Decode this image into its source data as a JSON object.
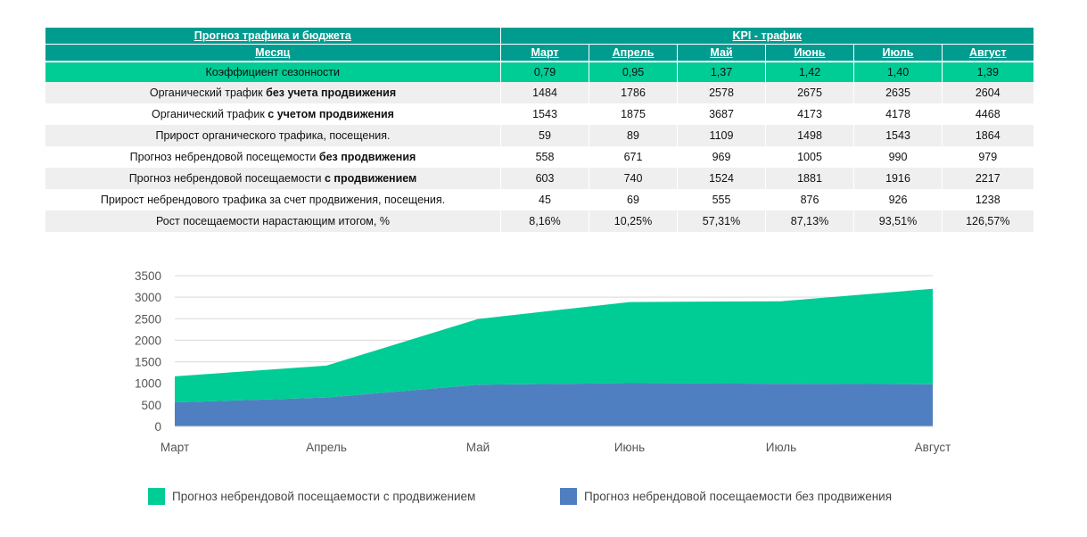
{
  "table": {
    "title_left": "Прогноз трафика и бюджета",
    "title_right": "KPI - трафик",
    "month_header": "Месяц",
    "months": [
      "Март",
      "Апрель",
      "Май",
      "Июнь",
      "Июль",
      "Август"
    ],
    "seasonality": {
      "label": "Коэффициент сезонности",
      "values": [
        "0,79",
        "0,95",
        "1,37",
        "1,42",
        "1,40",
        "1,39"
      ]
    },
    "rows": [
      {
        "label_plain": "Органический трафик ",
        "label_bold": "без учета продвижения",
        "values": [
          "1484",
          "1786",
          "2578",
          "2675",
          "2635",
          "2604"
        ]
      },
      {
        "label_plain": "Органический трафик ",
        "label_bold": "с учетом продвижения",
        "values": [
          "1543",
          "1875",
          "3687",
          "4173",
          "4178",
          "4468"
        ]
      },
      {
        "label_plain": "Прирост органического трафика, посещения.",
        "label_bold": "",
        "values": [
          "59",
          "89",
          "1109",
          "1498",
          "1543",
          "1864"
        ]
      },
      {
        "label_plain": "Прогноз небрендовой посещемости ",
        "label_bold": "без продвижения",
        "values": [
          "558",
          "671",
          "969",
          "1005",
          "990",
          "979"
        ]
      },
      {
        "label_plain": "Прогноз небрендовой посещаемости ",
        "label_bold": "с продвижением",
        "values": [
          "603",
          "740",
          "1524",
          "1881",
          "1916",
          "2217"
        ]
      },
      {
        "label_plain": "Прирост небрендового трафика за счет продвижения, посещения.",
        "label_bold": "",
        "values": [
          "45",
          "69",
          "555",
          "876",
          "926",
          "1238"
        ]
      },
      {
        "label_plain": "Рост посещаемости нарастающим итогом, %",
        "label_bold": "",
        "values": [
          "8,16%",
          "10,25%",
          "57,31%",
          "87,13%",
          "93,51%",
          "126,57%"
        ]
      }
    ]
  },
  "chart_data": {
    "type": "area",
    "stacked": true,
    "categories": [
      "Март",
      "Апрель",
      "Май",
      "Июнь",
      "Июль",
      "Август"
    ],
    "series": [
      {
        "name": "Прогноз небрендовой посещаемости без продвижения",
        "values": [
          558,
          671,
          969,
          1005,
          990,
          979
        ],
        "color": "#4f7fc1"
      },
      {
        "name": "Прогноз небрендовой посещаемости с продвижением",
        "values": [
          603,
          740,
          1524,
          1881,
          1916,
          2217
        ],
        "color": "#00cc96"
      }
    ],
    "ylim": [
      0,
      3500
    ],
    "yticks": [
      0,
      500,
      1000,
      1500,
      2000,
      2500,
      3000,
      3500
    ],
    "grid": true,
    "legend_position": "bottom",
    "legend_order": [
      1,
      0
    ],
    "title": "",
    "xlabel": "",
    "ylabel": ""
  },
  "colors": {
    "header_teal": "#009c8f",
    "season_green": "#00cc96",
    "row_stripe": "#efefef",
    "grid": "#d9d9d9"
  }
}
